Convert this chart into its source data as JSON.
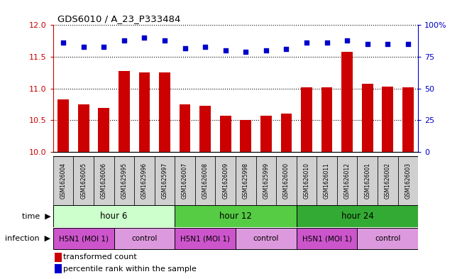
{
  "title": "GDS6010 / A_23_P333484",
  "samples": [
    "GSM1626004",
    "GSM1626005",
    "GSM1626006",
    "GSM1625995",
    "GSM1625996",
    "GSM1625997",
    "GSM1626007",
    "GSM1626008",
    "GSM1626009",
    "GSM1625998",
    "GSM1625999",
    "GSM1626000",
    "GSM1626010",
    "GSM1626011",
    "GSM1626012",
    "GSM1626001",
    "GSM1626002",
    "GSM1626003"
  ],
  "bar_values": [
    10.83,
    10.75,
    10.7,
    11.28,
    11.25,
    11.25,
    10.75,
    10.73,
    10.57,
    10.5,
    10.57,
    10.6,
    11.02,
    11.02,
    11.58,
    11.08,
    11.03,
    11.02
  ],
  "dot_values": [
    86,
    83,
    83,
    88,
    90,
    88,
    82,
    83,
    80,
    79,
    80,
    81,
    86,
    86,
    88,
    85,
    85,
    85
  ],
  "bar_color": "#cc0000",
  "dot_color": "#0000cc",
  "ylim_left": [
    10,
    12
  ],
  "ylim_right": [
    0,
    100
  ],
  "yticks_left": [
    10,
    10.5,
    11,
    11.5,
    12
  ],
  "yticks_right": [
    0,
    25,
    50,
    75,
    100
  ],
  "time_colors": [
    "#ccffcc",
    "#55cc44",
    "#33aa33"
  ],
  "time_labels": [
    "hour 6",
    "hour 12",
    "hour 24"
  ],
  "time_starts": [
    0,
    6,
    12
  ],
  "time_ends": [
    6,
    12,
    18
  ],
  "inf_labels": [
    "H5N1 (MOI 1)",
    "control",
    "H5N1 (MOI 1)",
    "control",
    "H5N1 (MOI 1)",
    "control"
  ],
  "inf_starts": [
    0,
    3,
    6,
    9,
    12,
    15
  ],
  "inf_ends": [
    3,
    6,
    9,
    12,
    15,
    18
  ],
  "inf_colors": [
    "#cc55cc",
    "#dd99dd",
    "#cc55cc",
    "#dd99dd",
    "#cc55cc",
    "#dd99dd"
  ],
  "sample_box_color": "#d0d0d0",
  "background_color": "#ffffff",
  "tick_color_left": "#cc0000",
  "tick_color_right": "#0000cc"
}
